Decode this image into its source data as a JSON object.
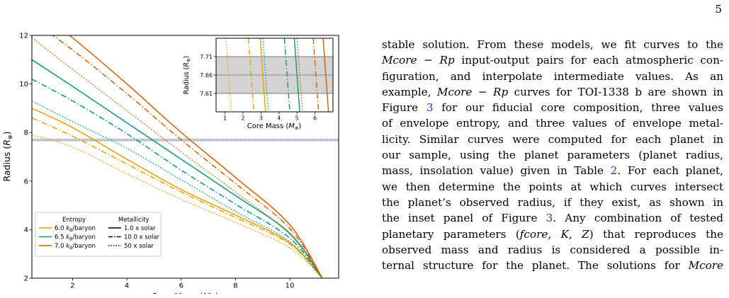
{
  "page_number": "5",
  "figure": {
    "main": {
      "xlabel": "Core Mass (M⊕)",
      "ylabel": "Radius (R⊕)",
      "xticks": [
        "2",
        "4",
        "6",
        "8",
        "10"
      ],
      "yticks": [
        "2",
        "4",
        "6",
        "8",
        "10",
        "12"
      ],
      "legend": {
        "entropy_title": "Entropy",
        "metallicity_title": "Metallicity",
        "entropy_items": [
          {
            "label": "6.0 kB/baryon",
            "color": "#e69f00"
          },
          {
            "label": "6.5 kB/baryon",
            "color": "#009e73"
          },
          {
            "label": "7.0 kB/baryon",
            "color": "#d55e00"
          }
        ],
        "metallicity_items": [
          {
            "label": "1.0 x solar",
            "dash": "solid"
          },
          {
            "label": "10.0 x solar",
            "dash": "dashdot"
          },
          {
            "label": "50 x solar",
            "dash": "dotted"
          }
        ]
      }
    },
    "inset": {
      "xlabel": "Core Mass (M⊕)",
      "ylabel": "Radius (R⊕)",
      "xticks": [
        "1",
        "2",
        "3",
        "4",
        "5",
        "6"
      ],
      "yticks": [
        "7.61",
        "7.66",
        "7.71"
      ]
    }
  },
  "chart_data": [
    {
      "type": "line",
      "xlabel": "Core Mass (M⊕)",
      "ylabel": "Radius (R⊕)",
      "xlim": [
        0.5,
        11.8
      ],
      "ylim": [
        2,
        12
      ],
      "grid": false,
      "legend_position": "bottom-left",
      "observed_radius": 7.66,
      "observed_radius_band": [
        7.61,
        7.71
      ],
      "series": [
        {
          "name": "6.0 kB/baryon, 1.0 x solar",
          "color": "#e69f00",
          "dash": "solid",
          "x": [
            0.5,
            2,
            4,
            6,
            8,
            10,
            11.2
          ],
          "y": [
            9.0,
            8.2,
            6.9,
            5.65,
            4.6,
            3.45,
            2.0
          ]
        },
        {
          "name": "6.0 kB/baryon, 10.0 x solar",
          "color": "#e69f00",
          "dash": "dashdot",
          "x": [
            0.5,
            2,
            4,
            6,
            8,
            10,
            11.2
          ],
          "y": [
            8.6,
            7.85,
            6.7,
            5.55,
            4.5,
            3.4,
            2.0
          ]
        },
        {
          "name": "6.0 kB/baryon, 50 x solar",
          "color": "#e69f00",
          "dash": "dotted",
          "x": [
            0.5,
            2,
            4,
            6,
            8,
            10,
            11.2
          ],
          "y": [
            7.9,
            7.4,
            6.3,
            5.25,
            4.3,
            3.25,
            2.0
          ]
        },
        {
          "name": "6.5 kB/baryon, 1.0 x solar",
          "color": "#009e73",
          "dash": "solid",
          "x": [
            0.5,
            2,
            4,
            6,
            8,
            10,
            11.2
          ],
          "y": [
            11.0,
            9.9,
            8.4,
            6.9,
            5.4,
            3.85,
            2.0
          ]
        },
        {
          "name": "6.5 kB/baryon, 10.0 x solar",
          "color": "#009e73",
          "dash": "dashdot",
          "x": [
            0.5,
            2,
            4,
            6,
            8,
            10,
            11.2
          ],
          "y": [
            10.2,
            9.3,
            7.95,
            6.45,
            5.05,
            3.65,
            2.0
          ]
        },
        {
          "name": "6.5 kB/baryon, 50 x solar",
          "color": "#009e73",
          "dash": "dotted",
          "x": [
            0.5,
            2,
            4,
            6,
            8,
            10,
            11.2
          ],
          "y": [
            9.3,
            8.45,
            7.35,
            6.05,
            4.75,
            3.5,
            2.0
          ]
        },
        {
          "name": "7.0 kB/baryon, 1.0 x solar",
          "color": "#d55e00",
          "dash": "solid",
          "x": [
            0.5,
            2,
            4,
            6,
            8,
            10,
            11.2
          ],
          "y": [
            13.2,
            11.9,
            10.0,
            8.0,
            6.15,
            4.2,
            2.0
          ]
        },
        {
          "name": "7.0 kB/baryon, 10.0 x solar",
          "color": "#d55e00",
          "dash": "dashdot",
          "x": [
            0.5,
            2,
            4,
            6,
            8,
            10,
            11.2
          ],
          "y": [
            12.6,
            11.4,
            9.6,
            7.7,
            5.9,
            4.05,
            2.0
          ]
        },
        {
          "name": "7.0 kB/baryon, 50 x solar",
          "color": "#d55e00",
          "dash": "dotted",
          "x": [
            0.5,
            2,
            4,
            6,
            8,
            10,
            11.2
          ],
          "y": [
            11.9,
            10.6,
            8.9,
            7.2,
            5.55,
            3.8,
            2.0
          ]
        }
      ]
    },
    {
      "type": "line",
      "xlabel": "Core Mass (M⊕)",
      "ylabel": "Radius (R⊕)",
      "xlim": [
        0.5,
        7
      ],
      "ylim": [
        7.56,
        7.76
      ],
      "observed_radius": 7.66,
      "observed_radius_band": [
        7.61,
        7.71
      ],
      "series": [
        {
          "name": "6.0 kB/baryon, 50 x solar",
          "color": "#e69f00",
          "dash": "dotted",
          "x": [
            1.05,
            1.35
          ],
          "y": [
            7.76,
            7.56
          ]
        },
        {
          "name": "6.0 kB/baryon, 10.0 x solar",
          "color": "#e69f00",
          "dash": "dashdot",
          "x": [
            2.3,
            2.6
          ],
          "y": [
            7.76,
            7.56
          ]
        },
        {
          "name": "6.0 kB/baryon, 1.0 x solar",
          "color": "#e69f00",
          "dash": "solid",
          "x": [
            2.95,
            3.25
          ],
          "y": [
            7.76,
            7.56
          ]
        },
        {
          "name": "6.5 kB/baryon, 50 x solar",
          "color": "#009e73",
          "dash": "dotted",
          "x": [
            3.1,
            3.4
          ],
          "y": [
            7.76,
            7.56
          ]
        },
        {
          "name": "6.5 kB/baryon, 10.0 x solar",
          "color": "#009e73",
          "dash": "dashdot",
          "x": [
            4.3,
            4.6
          ],
          "y": [
            7.76,
            7.56
          ]
        },
        {
          "name": "6.5 kB/baryon, 1.0 x solar",
          "color": "#009e73",
          "dash": "solid",
          "x": [
            4.85,
            5.15
          ],
          "y": [
            7.76,
            7.56
          ]
        },
        {
          "name": "7.0 kB/baryon, 50 x solar",
          "color": "#d55e00",
          "dash": "dotted",
          "x": [
            5.0,
            5.3
          ],
          "y": [
            7.76,
            7.56
          ]
        },
        {
          "name": "7.0 kB/baryon, 10.0 x solar",
          "color": "#d55e00",
          "dash": "dashdot",
          "x": [
            5.9,
            6.2
          ],
          "y": [
            7.76,
            7.56
          ]
        },
        {
          "name": "7.0 kB/baryon, 1.0 x solar",
          "color": "#d55e00",
          "dash": "solid",
          "x": [
            6.45,
            6.75
          ],
          "y": [
            7.76,
            7.56
          ]
        }
      ]
    }
  ],
  "body": {
    "lines": [
      "stable solution. From these models, we fit curves to the",
      "input-output pairs for each atmospheric con-",
      "figuration, and interpolate intermediate values. As an",
      "example,",
      "curves for TOI-1338 b are shown in",
      "Figure",
      "3",
      "for our fiducial core composition, three values",
      "of envelope entropy, and three values of envelope metal-",
      "licity. Similar curves were computed for each planet in",
      "our sample, using the planet parameters (planet radius,",
      "mass, insolation value) given in Table",
      "2",
      ". For each planet,",
      "we then determine the points at which curves intersect",
      "the planet’s observed radius, if they exist, as shown in",
      "the inset panel of Figure",
      "3",
      ". Any combination of tested",
      "planetary parameters (",
      ") that reproduces the",
      "observed mass and radius is considered a possible in-",
      "ternal structure for the planet. The solutions for"
    ],
    "math": {
      "mcore_rp": "Mcore − Rp",
      "params": "fcore, K, Z",
      "mcore": "Mcore"
    }
  }
}
